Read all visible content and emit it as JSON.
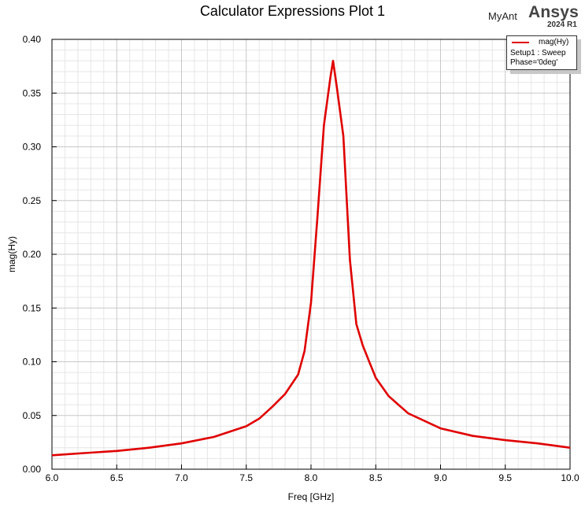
{
  "header": {
    "title": "Calculator Expressions Plot 1",
    "design_name": "MyAnt",
    "brand": "Ansys",
    "release": "2024 R1"
  },
  "legend": {
    "series_name": "mag(Hy)",
    "setup": "Setup1 : Sweep",
    "phase": "Phase='0deg'"
  },
  "colors": {
    "series": "#e00000",
    "grid_major": "#c8c8c8",
    "grid_minor": "#e6e6e6"
  },
  "chart_data": {
    "type": "line",
    "title": "Calculator Expressions Plot 1",
    "xlabel": "Freq [GHz]",
    "ylabel": "mag(Hy)",
    "xlim": [
      6.0,
      10.0
    ],
    "ylim": [
      0.0,
      0.4
    ],
    "xticks": [
      "6.0",
      "6.5",
      "7.0",
      "7.5",
      "8.0",
      "8.5",
      "9.0",
      "9.5",
      "10.0"
    ],
    "yticks": [
      "0.00",
      "0.05",
      "0.10",
      "0.15",
      "0.20",
      "0.25",
      "0.30",
      "0.35",
      "0.40"
    ],
    "grid": true,
    "legend_position": "top-right",
    "series": [
      {
        "name": "mag(Hy)",
        "x": [
          6.0,
          6.25,
          6.5,
          6.75,
          7.0,
          7.25,
          7.5,
          7.6,
          7.7,
          7.8,
          7.9,
          7.95,
          8.0,
          8.05,
          8.1,
          8.15,
          8.17,
          8.2,
          8.25,
          8.3,
          8.35,
          8.4,
          8.45,
          8.5,
          8.6,
          8.75,
          9.0,
          9.25,
          9.5,
          9.75,
          10.0
        ],
        "y": [
          0.013,
          0.015,
          0.017,
          0.02,
          0.024,
          0.03,
          0.04,
          0.047,
          0.058,
          0.07,
          0.088,
          0.11,
          0.155,
          0.235,
          0.32,
          0.365,
          0.38,
          0.355,
          0.31,
          0.195,
          0.135,
          0.115,
          0.1,
          0.085,
          0.068,
          0.052,
          0.038,
          0.031,
          0.027,
          0.024,
          0.02
        ]
      }
    ]
  }
}
